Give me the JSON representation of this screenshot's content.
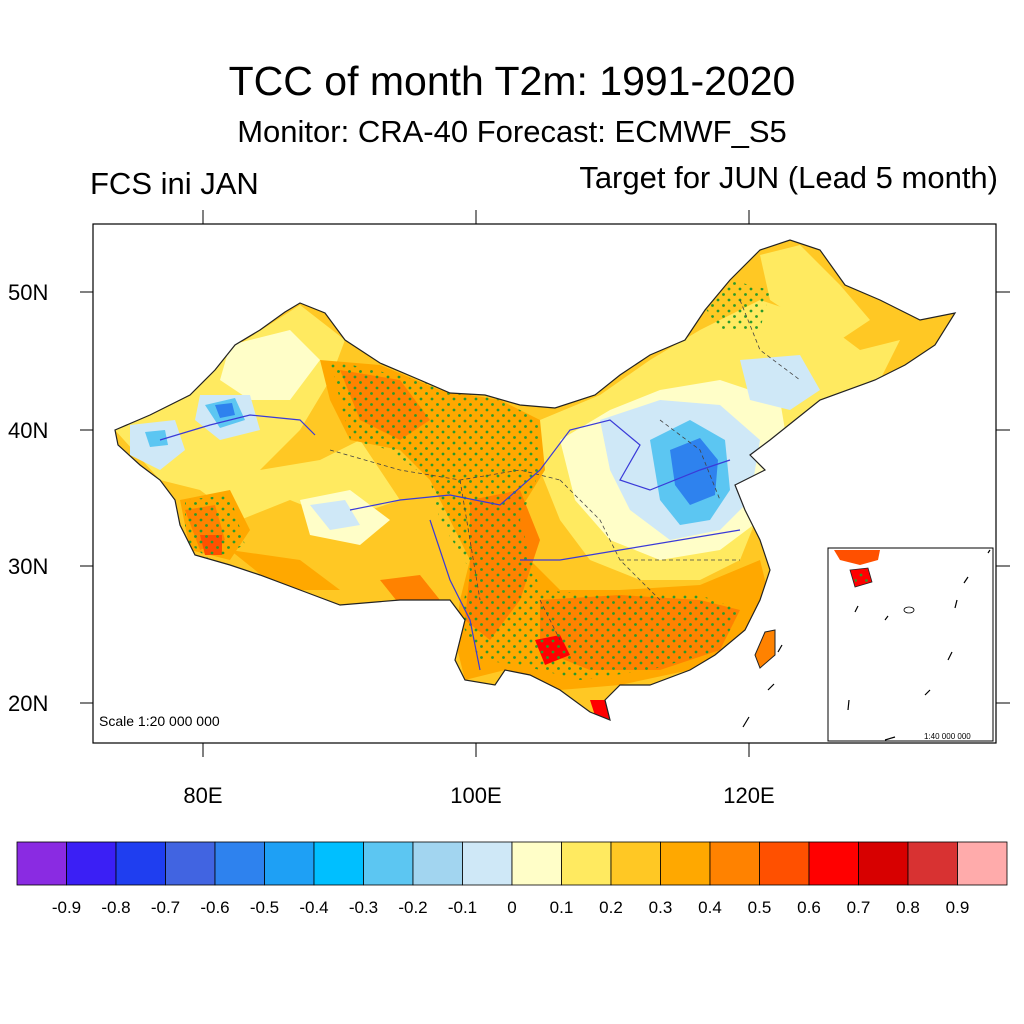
{
  "title": "TCC of month T2m: 1991-2020",
  "subtitle": "Monitor: CRA-40   Forecast: ECMWF_S5",
  "left_string": "FCS ini JAN",
  "right_string": "Target for JUN (Lead 5 month)",
  "map": {
    "scale_label": "Scale 1:20 000 000",
    "inset_scale_label": "1:40 000 000",
    "lat_labels": [
      "50N",
      "40N",
      "30N",
      "20N"
    ],
    "lon_labels": [
      "80E",
      "100E",
      "120E"
    ]
  },
  "colorbar": {
    "colors": [
      "#8a2be2",
      "#3b1ff5",
      "#1f3ef0",
      "#4164e1",
      "#2e82ee",
      "#1ea0f5",
      "#00bfff",
      "#5cc6f2",
      "#a2d5f0",
      "#cfe8f7",
      "#fffec8",
      "#ffea60",
      "#ffc824",
      "#ffa800",
      "#ff8200",
      "#ff5000",
      "#ff0000",
      "#d70000",
      "#d83232",
      "#ffabab"
    ],
    "labels": [
      "-0.9",
      "-0.8",
      "-0.7",
      "-0.6",
      "-0.5",
      "-0.4",
      "-0.3",
      "-0.2",
      "-0.1",
      "0",
      "0.1",
      "0.2",
      "0.3",
      "0.4",
      "0.5",
      "0.6",
      "0.7",
      "0.8",
      "0.9"
    ]
  }
}
